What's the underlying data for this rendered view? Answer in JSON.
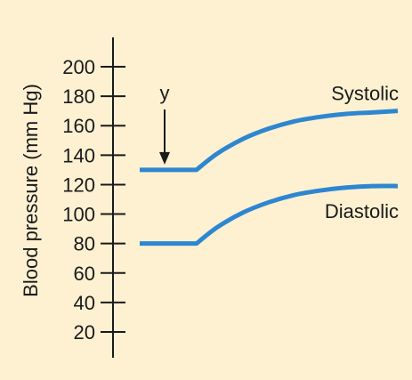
{
  "chart_data": {
    "type": "line",
    "title": "",
    "ylabel": "Blood pressure (mm Hg)",
    "xlabel": "",
    "ylim": [
      10,
      220
    ],
    "yticks": [
      20,
      40,
      60,
      80,
      100,
      120,
      140,
      160,
      180,
      200
    ],
    "ytick_labels": [
      "20",
      "40",
      "60",
      "80",
      "100",
      "120",
      "140",
      "160",
      "180",
      "200"
    ],
    "x_axis": "unlabeled time",
    "xlim": [
      0,
      100
    ],
    "grid": false,
    "series": [
      {
        "name": "Systolic",
        "color": "#2e86d0",
        "x": [
          0,
          22,
          30,
          40,
          50,
          60,
          70,
          80,
          90,
          100
        ],
        "values": [
          130,
          130,
          141,
          151,
          158,
          163,
          166,
          168,
          169,
          170
        ]
      },
      {
        "name": "Diastolic",
        "color": "#2e86d0",
        "x": [
          0,
          22,
          30,
          40,
          50,
          60,
          70,
          80,
          90,
          100
        ],
        "values": [
          80,
          80,
          91,
          101,
          108,
          113,
          116,
          118,
          119,
          119
        ]
      }
    ],
    "annotations": [
      {
        "label": "y",
        "x": 9,
        "arrow": "down",
        "points_to_value": 130
      }
    ],
    "colors": {
      "line": "#2e86d0",
      "axis": "#1a1a1a",
      "background": "#fdf1d2"
    }
  }
}
